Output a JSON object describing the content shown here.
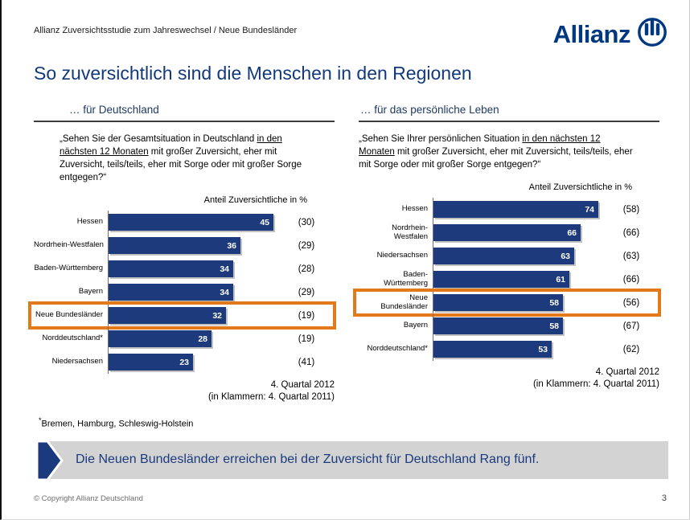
{
  "header": {
    "subtitle": "Allianz Zuversichtsstudie zum Jahreswechsel / Neue Bundesländer",
    "title": "So zuversichtlich sind die Menschen in den Regionen",
    "logo_wordmark": "Allianz"
  },
  "columns": [
    {
      "header": "… für Deutschland",
      "question": {
        "pre": "„Sehen Sie der Gesamtsituation in Deutschland ",
        "underlined": "in den nächsten 12 Monaten",
        "post": " mit großer Zuversicht, eher mit Zuversicht, teils/teils, eher mit Sorge oder mit großer Sorge entgegen?“"
      }
    },
    {
      "header": "… für das persönliche Leben",
      "question": {
        "pre": "„Sehen Sie Ihrer persönlichen Situation ",
        "underlined": "in den nächsten 12 Monaten",
        "post": " mit großer Zuversicht, eher mit Zuversicht, teils/teils, eher mit Sorge oder mit großer Sorge entgegen?“"
      }
    }
  ],
  "chart_data": [
    {
      "type": "bar",
      "orientation": "horizontal",
      "panel": "… für Deutschland",
      "axis_note": "Anteil Zuversichtliche in %",
      "categories": [
        "Hessen",
        "Nordrhein-Westfalen",
        "Baden-Württemberg",
        "Bayern",
        "Neue Bundesländer",
        "Norddeutschland*",
        "Niedersachsen"
      ],
      "series": [
        {
          "name": "4. Quartal 2012",
          "values": [
            45,
            36,
            34,
            34,
            32,
            28,
            23
          ]
        },
        {
          "name": "4. Quartal 2011",
          "values": [
            30,
            29,
            28,
            29,
            19,
            19,
            41
          ]
        }
      ],
      "value_suffix": "%",
      "highlight_category": "Neue Bundesländer",
      "period_line1": "4. Quartal 2012",
      "period_line2": "(in Klammern: 4. Quartal 2011)",
      "bar_color": "#1d3a7c",
      "highlight_color": "#e2791b",
      "wrap_labels": false
    },
    {
      "type": "bar",
      "orientation": "horizontal",
      "panel": "… für das persönliche Leben",
      "axis_note": "Anteil Zuversichtliche in %",
      "categories": [
        "Hessen",
        "Nordrhein-Westfalen",
        "Niedersachsen",
        "Baden-Württemberg",
        "Neue Bundesländer",
        "Bayern",
        "Norddeutschland*"
      ],
      "series": [
        {
          "name": "4. Quartal 2012",
          "values": [
            74,
            66,
            63,
            61,
            58,
            58,
            53
          ]
        },
        {
          "name": "4. Quartal 2011",
          "values": [
            58,
            66,
            63,
            66,
            56,
            67,
            62
          ]
        }
      ],
      "value_suffix": "%",
      "highlight_category": "Neue Bundesländer",
      "period_line1": "4. Quartal 2012",
      "period_line2": "(in Klammern: 4. Quartal 2011)",
      "bar_color": "#1d3a7c",
      "highlight_color": "#e2791b",
      "wrap_labels": true
    }
  ],
  "footnote": {
    "marker": "*",
    "text": "Bremen, Hamburg, Schleswig-Holstein"
  },
  "banner": {
    "text": "Die Neuen Bundesländer erreichen bei der Zuversicht für Deutschland Rang fünf."
  },
  "footer": {
    "copyright": "© Copyright Allianz Deutschland",
    "page": "3"
  },
  "colors": {
    "allianz_blue": "#003781",
    "bar_navy": "#1d3a7c",
    "highlight_orange": "#e2791b",
    "banner_gray": "#d3d3d3"
  }
}
